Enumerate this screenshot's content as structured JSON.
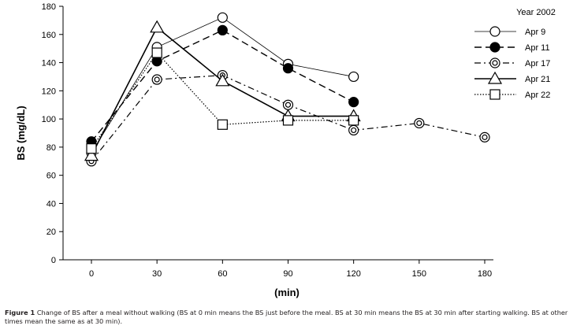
{
  "chart_data": {
    "type": "line",
    "title": "",
    "xlabel": "(min)",
    "ylabel": "BS (mg/dL)",
    "x_ticks": [
      0,
      30,
      60,
      90,
      120,
      150,
      180
    ],
    "y_ticks": [
      0,
      20,
      40,
      60,
      80,
      100,
      120,
      140,
      160,
      180
    ],
    "xlim": [
      0,
      180
    ],
    "ylim": [
      0,
      180
    ],
    "legend_title": "Year 2002",
    "legend_position": "top-right",
    "series": [
      {
        "name": "Apr 9",
        "marker": "open-circle",
        "line": "solid-thin",
        "x": [
          0,
          30,
          60,
          90,
          120
        ],
        "values": [
          76,
          151,
          172,
          139,
          130
        ]
      },
      {
        "name": "Apr 11",
        "marker": "filled-circle",
        "line": "dashed",
        "x": [
          0,
          30,
          60,
          90,
          120
        ],
        "values": [
          84,
          141,
          163,
          136,
          112
        ]
      },
      {
        "name": "Apr 17",
        "marker": "double-circle",
        "line": "dash-dot",
        "x": [
          0,
          30,
          60,
          90,
          120,
          150,
          180
        ],
        "values": [
          70,
          128,
          131,
          110,
          92,
          97,
          87
        ]
      },
      {
        "name": "Apr 21",
        "marker": "open-triangle",
        "line": "solid",
        "x": [
          0,
          30,
          60,
          90,
          120
        ],
        "values": [
          74,
          165,
          127,
          102,
          102
        ]
      },
      {
        "name": "Apr 22",
        "marker": "open-square",
        "line": "dotted",
        "x": [
          0,
          30,
          60,
          90,
          120
        ],
        "values": [
          79,
          147,
          96,
          99,
          99
        ]
      }
    ]
  },
  "caption": {
    "label": "Figure 1",
    "text": " Change of BS after a meal without walking (BS at 0 min means the BS just before the meal. BS at 30 min means the BS at 30 min after starting walking. BS at other times mean the same as at 30 min)."
  }
}
